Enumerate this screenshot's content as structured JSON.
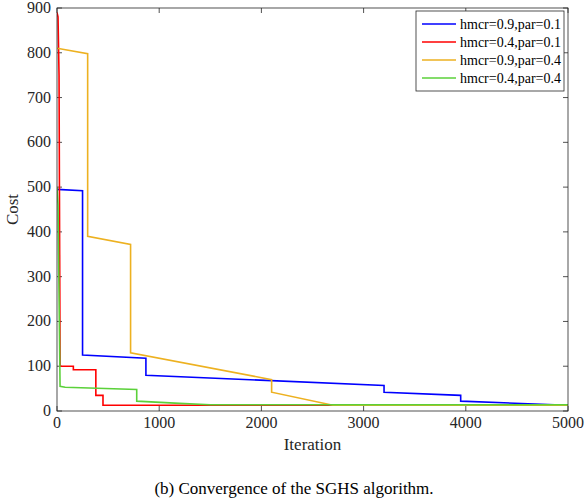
{
  "chart_data": {
    "type": "line",
    "x_label": "Iteration",
    "y_label": "Cost",
    "caption": "(b) Convergence of the SGHS algorithm.",
    "xlim": [
      0,
      5000
    ],
    "xticks": [
      0,
      1000,
      2000,
      3000,
      4000,
      5000
    ],
    "ylim": [
      0,
      900
    ],
    "yticks": [
      0,
      100,
      200,
      300,
      400,
      500,
      600,
      700,
      800,
      900
    ],
    "legend": "upper right",
    "grid": false,
    "series": [
      {
        "name": "hmcr=0.9,par=0.1",
        "color": "#0000ff",
        "x": [
          0,
          250,
          250,
          870,
          870,
          3200,
          3200,
          3950,
          3950,
          5000
        ],
        "values": [
          495,
          492,
          125,
          118,
          80,
          57,
          42,
          35,
          22,
          13
        ]
      },
      {
        "name": "hmcr=0.4,par=0.1",
        "color": "#ff0000",
        "x": [
          0,
          10,
          20,
          30,
          160,
          160,
          380,
          380,
          450,
          450,
          5000
        ],
        "values": [
          890,
          880,
          750,
          100,
          100,
          92,
          92,
          35,
          35,
          13,
          13
        ]
      },
      {
        "name": "hmcr=0.9,par=0.4",
        "color": "#edb120",
        "x": [
          0,
          300,
          300,
          720,
          720,
          2100,
          2100,
          2700,
          5000
        ],
        "values": [
          810,
          798,
          390,
          372,
          130,
          70,
          42,
          13,
          13
        ]
      },
      {
        "name": "hmcr=0.4,par=0.4",
        "color": "#5bd13a",
        "x": [
          0,
          10,
          30,
          80,
          780,
          780,
          1200,
          1500,
          5000
        ],
        "values": [
          500,
          460,
          55,
          53,
          48,
          22,
          17,
          14,
          14
        ]
      }
    ]
  }
}
